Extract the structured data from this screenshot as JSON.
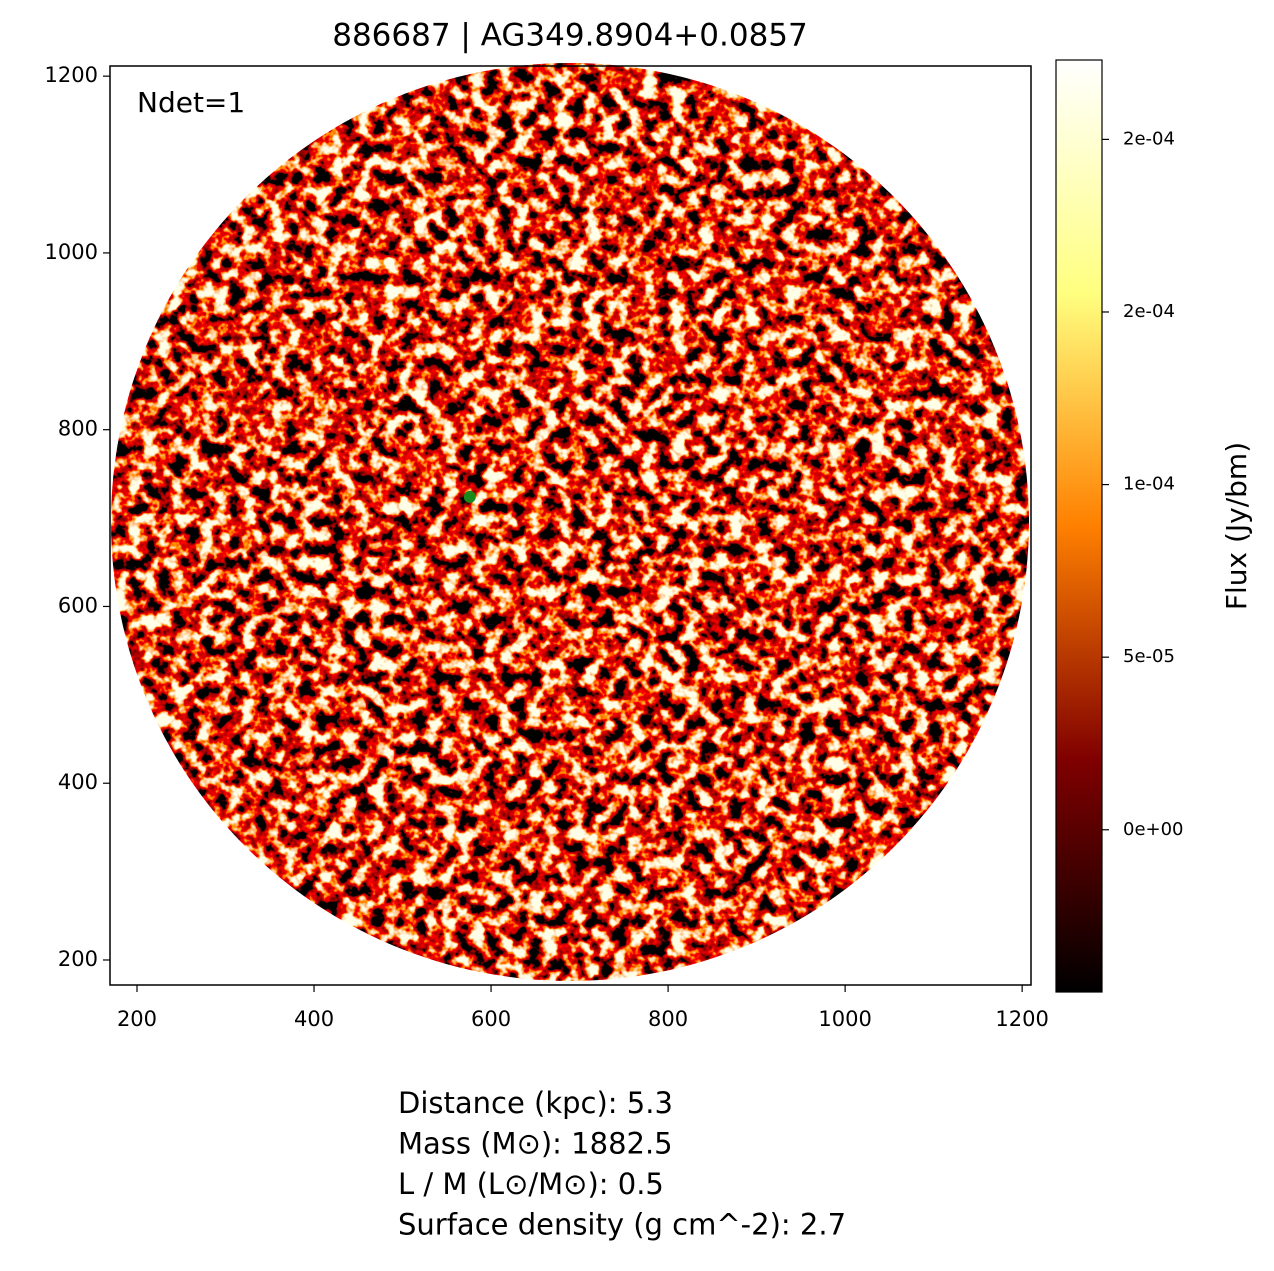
{
  "chart_data": {
    "type": "scatter",
    "title": "886687 | AG349.8904+0.0857",
    "annotation": "Ndet=1",
    "x": [
      576
    ],
    "y": [
      724
    ],
    "color": "#1a8a1a",
    "xlim": [
      169.5,
      1210
    ],
    "ylim": [
      171.7,
      1211.5
    ],
    "xticks": [
      200,
      400,
      600,
      800,
      1000,
      1200
    ],
    "yticks": [
      200,
      400,
      600,
      800,
      1000,
      1200
    ],
    "colorbar": {
      "label": "Flux (Jy/bm)",
      "colormap": "afmhot",
      "lim": [
        -4.7e-05,
        0.000223
      ],
      "ticks": [
        {
          "value": 0,
          "label": "0e+00"
        },
        {
          "value": 5e-05,
          "label": "5e-05"
        },
        {
          "value": 0.0001,
          "label": "1e-04"
        },
        {
          "value": 0.00015,
          "label": "2e-04"
        },
        {
          "value": 0.0002,
          "label": "2e-04"
        }
      ]
    },
    "info": [
      "Distance (kpc): 5.3",
      "Mass (M⊙): 1882.5",
      "L / M (L⊙/M⊙): 0.5",
      "Surface density (g cm^-2): 2.7"
    ]
  }
}
